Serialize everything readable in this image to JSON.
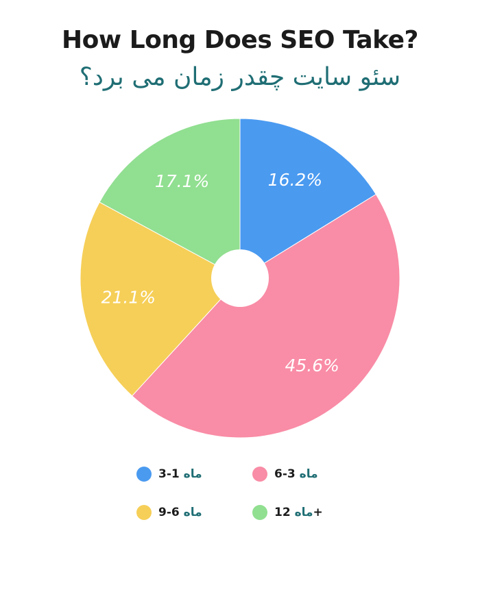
{
  "chart_data": {
    "type": "pie",
    "title": "How Long Does SEO Take?",
    "subtitle": "سئو سایت چقدر زمان می برد؟",
    "donut": true,
    "slices": [
      {
        "label": "1-3",
        "unit": "ماه",
        "value": 16.2,
        "display": "16.2%",
        "color": "#4a9af0"
      },
      {
        "label": "3-6",
        "unit": "ماه",
        "value": 45.6,
        "display": "45.6%",
        "color": "#f98ca6"
      },
      {
        "label": "6-9",
        "unit": "ماه",
        "value": 21.1,
        "display": "21.1%",
        "color": "#f6cf58"
      },
      {
        "label": "12+",
        "unit": "ماه",
        "value": 17.1,
        "display": "17.1%",
        "color": "#91df91"
      }
    ],
    "legend_position": "bottom"
  }
}
